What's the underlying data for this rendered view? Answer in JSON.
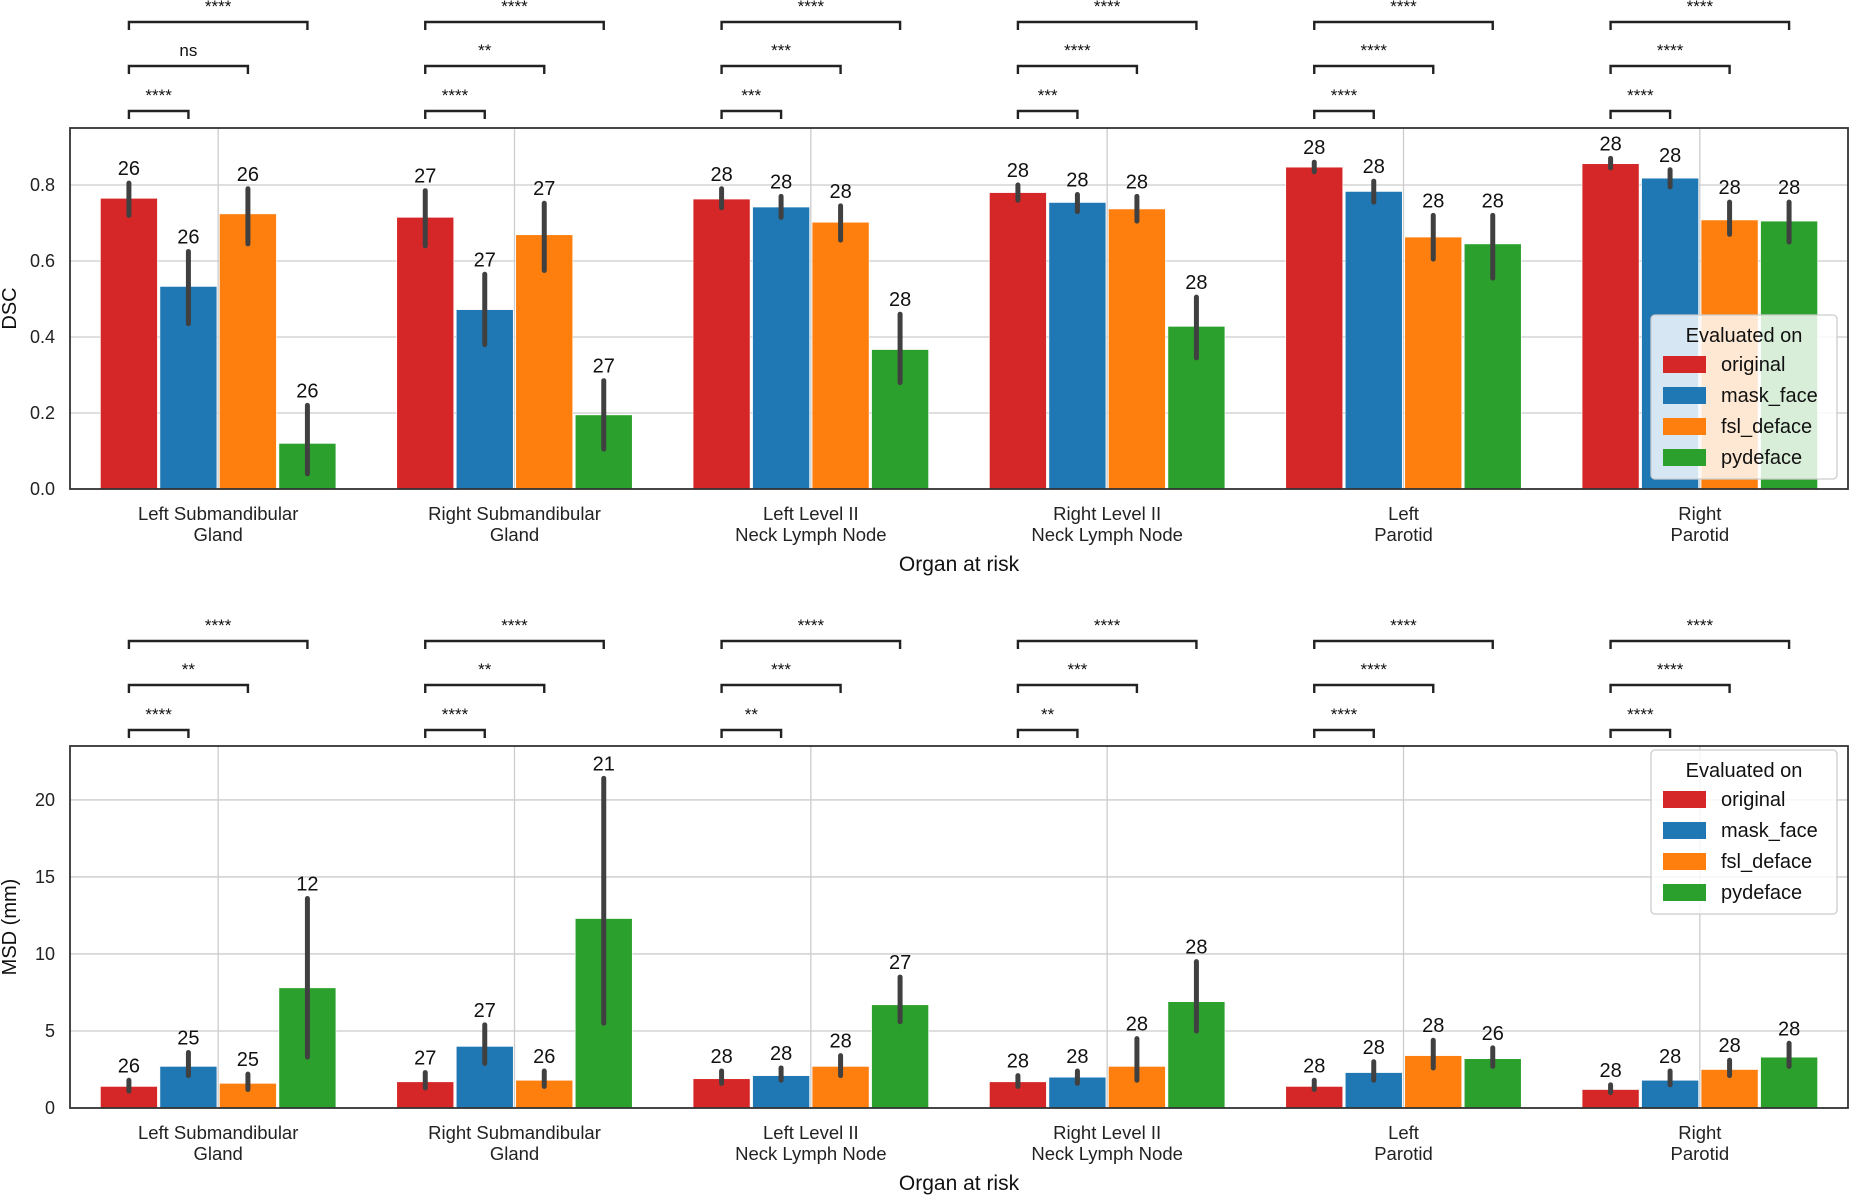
{
  "chart_data": [
    {
      "type": "bar",
      "xlabel": "Organ at risk",
      "ylabel": "DSC",
      "ylim": [
        0,
        0.95
      ],
      "yticks": [
        0.0,
        0.2,
        0.4,
        0.6,
        0.8
      ],
      "ytick_labels": [
        "0.0",
        "0.2",
        "0.4",
        "0.6",
        "0.8"
      ],
      "grid": true,
      "categories": [
        "Left Submandibular\nGland",
        "Right Submandibular\nGland",
        "Left Level II\nNeck Lymph Node",
        "Right Level II\nNeck Lymph Node",
        "Left\nParotid",
        "Right\nParotid"
      ],
      "legend": {
        "title": "Evaluated on",
        "position": "right"
      },
      "series": [
        {
          "name": "original",
          "color": "#d62728",
          "values": [
            0.765,
            0.715,
            0.763,
            0.78,
            0.847,
            0.856
          ],
          "ci_low": [
            0.72,
            0.64,
            0.74,
            0.76,
            0.835,
            0.845
          ],
          "ci_high": [
            0.805,
            0.785,
            0.79,
            0.8,
            0.86,
            0.87
          ],
          "n": [
            "26",
            "27",
            "28",
            "28",
            "28",
            "28"
          ]
        },
        {
          "name": "mask_face",
          "color": "#1f77b4",
          "values": [
            0.533,
            0.472,
            0.742,
            0.754,
            0.783,
            0.818
          ],
          "ci_low": [
            0.435,
            0.38,
            0.715,
            0.73,
            0.755,
            0.795
          ],
          "ci_high": [
            0.625,
            0.565,
            0.77,
            0.775,
            0.81,
            0.84
          ],
          "n": [
            "26",
            "27",
            "28",
            "28",
            "28",
            "28"
          ]
        },
        {
          "name": "fsl_deface",
          "color": "#ff7f0e",
          "values": [
            0.724,
            0.669,
            0.702,
            0.737,
            0.663,
            0.708
          ],
          "ci_low": [
            0.645,
            0.575,
            0.655,
            0.705,
            0.605,
            0.67
          ],
          "ci_high": [
            0.79,
            0.752,
            0.745,
            0.77,
            0.72,
            0.755
          ],
          "n": [
            "26",
            "27",
            "28",
            "28",
            "28",
            "28"
          ]
        },
        {
          "name": "pydeface",
          "color": "#2ca02c",
          "values": [
            0.12,
            0.195,
            0.367,
            0.428,
            0.645,
            0.705
          ],
          "ci_low": [
            0.04,
            0.105,
            0.28,
            0.345,
            0.555,
            0.65
          ],
          "ci_high": [
            0.22,
            0.285,
            0.46,
            0.505,
            0.72,
            0.755
          ],
          "n": [
            "26",
            "27",
            "28",
            "28",
            "28",
            "28"
          ]
        }
      ],
      "significance": [
        [
          "****",
          "ns",
          "****"
        ],
        [
          "****",
          "**",
          "****"
        ],
        [
          "***",
          "***",
          "****"
        ],
        [
          "***",
          "****",
          "****"
        ],
        [
          "****",
          "****",
          "****"
        ],
        [
          "****",
          "****",
          "****"
        ]
      ]
    },
    {
      "type": "bar",
      "xlabel": "Organ at risk",
      "ylabel": "MSD (mm)",
      "ylim": [
        0,
        23.5
      ],
      "yticks": [
        0,
        5,
        10,
        15,
        20
      ],
      "ytick_labels": [
        "0",
        "5",
        "10",
        "15",
        "20"
      ],
      "grid": true,
      "categories": [
        "Left Submandibular\nGland",
        "Right Submandibular\nGland",
        "Left Level II\nNeck Lymph Node",
        "Right Level II\nNeck Lymph Node",
        "Left\nParotid",
        "Right\nParotid"
      ],
      "legend": {
        "title": "Evaluated on",
        "position": "top-right"
      },
      "series": [
        {
          "name": "original",
          "color": "#d62728",
          "values": [
            1.4,
            1.7,
            1.9,
            1.7,
            1.4,
            1.2
          ],
          "ci_low": [
            1.1,
            1.3,
            1.6,
            1.4,
            1.2,
            1.0
          ],
          "ci_high": [
            1.8,
            2.3,
            2.4,
            2.1,
            1.8,
            1.5
          ],
          "n": [
            "26",
            "27",
            "28",
            "28",
            "28",
            "28"
          ]
        },
        {
          "name": "mask_face",
          "color": "#1f77b4",
          "values": [
            2.7,
            4.0,
            2.1,
            2.0,
            2.3,
            1.8
          ],
          "ci_low": [
            2.1,
            2.9,
            1.8,
            1.6,
            1.8,
            1.5
          ],
          "ci_high": [
            3.6,
            5.4,
            2.6,
            2.4,
            3.0,
            2.4
          ],
          "n": [
            "25",
            "27",
            "28",
            "28",
            "28",
            "28"
          ]
        },
        {
          "name": "fsl_deface",
          "color": "#ff7f0e",
          "values": [
            1.6,
            1.8,
            2.7,
            2.7,
            3.4,
            2.5
          ],
          "ci_low": [
            1.2,
            1.4,
            2.1,
            1.8,
            2.6,
            2.1
          ],
          "ci_high": [
            2.2,
            2.4,
            3.4,
            4.5,
            4.4,
            3.1
          ],
          "n": [
            "25",
            "26",
            "28",
            "28",
            "28",
            "28"
          ]
        },
        {
          "name": "pydeface",
          "color": "#2ca02c",
          "values": [
            7.8,
            12.3,
            6.7,
            6.9,
            3.2,
            3.3
          ],
          "ci_low": [
            3.3,
            5.5,
            5.6,
            5.0,
            2.7,
            2.7
          ],
          "ci_high": [
            13.6,
            21.4,
            8.5,
            9.5,
            3.9,
            4.2
          ],
          "n": [
            "12",
            "21",
            "27",
            "28",
            "26",
            "28"
          ]
        }
      ],
      "significance": [
        [
          "****",
          "**",
          "****"
        ],
        [
          "****",
          "**",
          "****"
        ],
        [
          "**",
          "***",
          "****"
        ],
        [
          "**",
          "***",
          "****"
        ],
        [
          "****",
          "****",
          "****"
        ],
        [
          "****",
          "****",
          "****"
        ]
      ]
    }
  ]
}
